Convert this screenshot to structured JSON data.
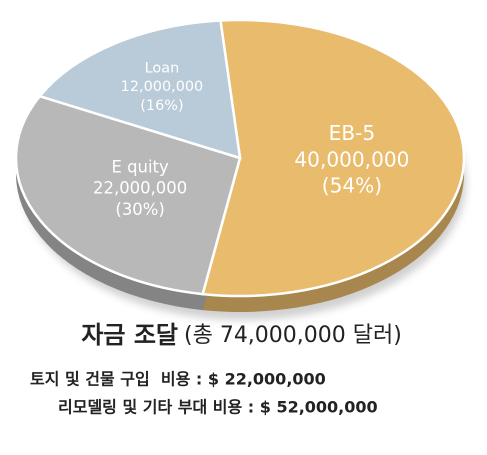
{
  "chart_data": {
    "type": "pie",
    "categories": [
      "EB-5",
      "E quity",
      "Loan"
    ],
    "values": [
      40000000,
      22000000,
      12000000
    ],
    "value_labels": [
      "40,000,000",
      "22,000,000",
      "12,000,000"
    ],
    "percents": [
      54,
      30,
      16
    ],
    "percent_labels": [
      "(54%)",
      "(30%)",
      "(16%)"
    ],
    "colors": [
      "#e9bb6c",
      "#b8b8b8",
      "#b9cad8"
    ],
    "title": "자금 조달",
    "subtitle": "(총 74,000,000 달러)",
    "notes": [
      "토지 및 건물 구입  비용 : $ 22,000,000",
      "리모델링 및 기타 부대 비용 : $ 52,000,000"
    ]
  }
}
